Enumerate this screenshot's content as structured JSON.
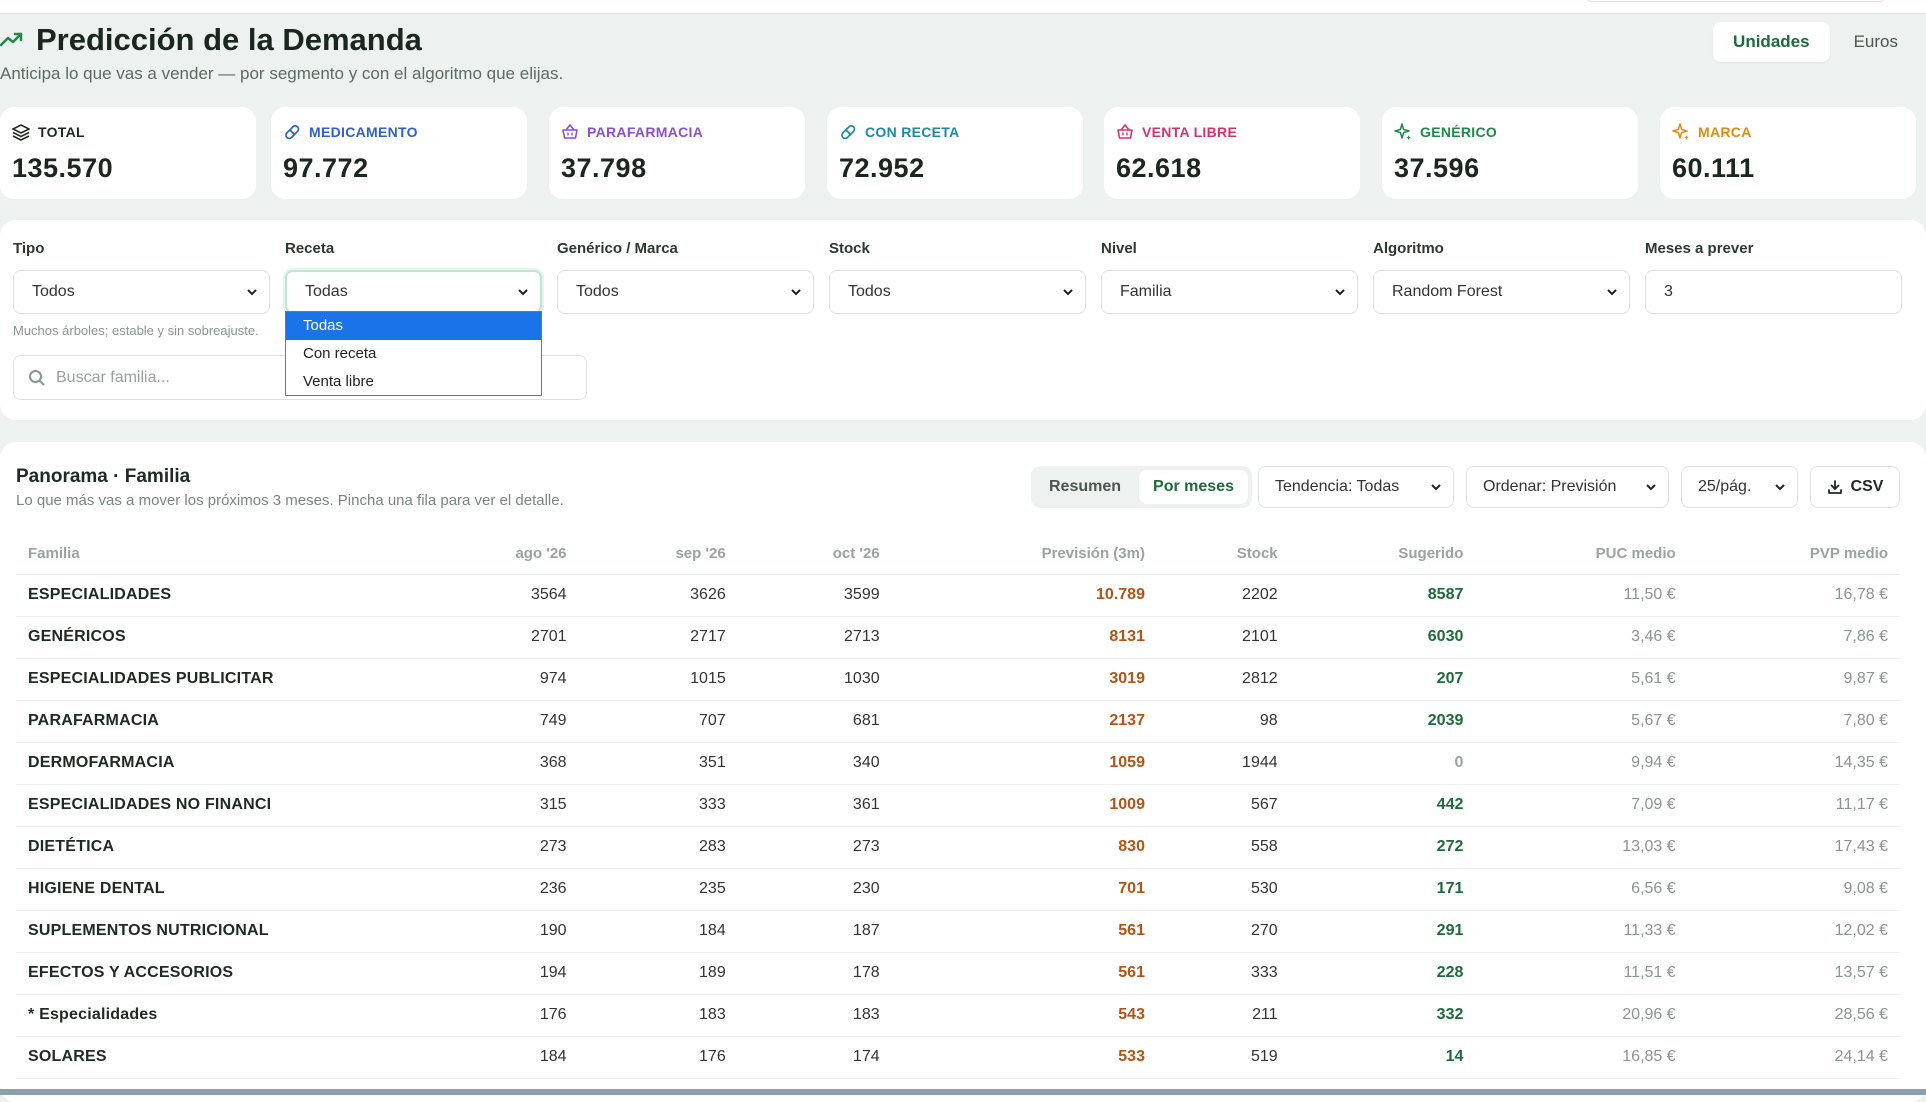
{
  "header": {
    "title": "Predicción de la Demanda",
    "subtitle": "Anticipa lo que vas a vender — por segmento y con el algoritmo que elijas.",
    "unit_options": [
      "Unidades",
      "Euros"
    ],
    "unit_selected": "Unidades"
  },
  "kpis": [
    {
      "label": "TOTAL",
      "value": "135.570",
      "color": "#1f2a24",
      "icon": "layers-icon"
    },
    {
      "label": "MEDICAMENTO",
      "value": "97.772",
      "color": "#2f5fd0",
      "icon": "pill-icon"
    },
    {
      "label": "PARAFARMACIA",
      "value": "37.798",
      "color": "#8a4fd6",
      "icon": "basket-icon"
    },
    {
      "label": "CON RECETA",
      "value": "72.952",
      "color": "#1b8aa0",
      "icon": "pill-icon"
    },
    {
      "label": "VENTA LIBRE",
      "value": "62.618",
      "color": "#d6336c",
      "icon": "basket-icon"
    },
    {
      "label": "GENÉRICO",
      "value": "37.596",
      "color": "#1d8a4a",
      "icon": "sparkle-icon"
    },
    {
      "label": "MARCA",
      "value": "60.111",
      "color": "#e08a10",
      "icon": "sparkle-icon"
    }
  ],
  "filters": {
    "tipo": {
      "label": "Tipo",
      "value": "Todos"
    },
    "receta": {
      "label": "Receta",
      "value": "Todas",
      "options": [
        "Todas",
        "Con receta",
        "Venta libre"
      ]
    },
    "generico": {
      "label": "Genérico / Marca",
      "value": "Todos"
    },
    "stock": {
      "label": "Stock",
      "value": "Todos"
    },
    "nivel": {
      "label": "Nivel",
      "value": "Familia"
    },
    "algoritmo": {
      "label": "Algoritmo",
      "value": "Random Forest"
    },
    "meses": {
      "label": "Meses a prever",
      "value": "3"
    },
    "hint": "Muchos árboles; estable y sin sobreajuste.",
    "search_placeholder": "Buscar familia..."
  },
  "panel": {
    "title": "Panorama · Familia",
    "subtitle": "Lo que más vas a mover los próximos 3 meses. Pincha una fila para ver el detalle.",
    "view_options": [
      "Resumen",
      "Por meses"
    ],
    "view_selected": "Por meses",
    "trend": "Tendencia: Todas",
    "sort": "Ordenar: Previsión",
    "page_size": "25/pág.",
    "csv": "CSV"
  },
  "table": {
    "columns": [
      "Familia",
      "ago '26",
      "sep '26",
      "oct '26",
      "Previsión (3m)",
      "Stock",
      "Sugerido",
      "PUC medio",
      "PVP medio"
    ],
    "rows": [
      [
        "ESPECIALIDADES",
        "3564",
        "3626",
        "3599",
        "10.789",
        "2202",
        "8587",
        "11,50 €",
        "16,78 €"
      ],
      [
        "GENÉRICOS",
        "2701",
        "2717",
        "2713",
        "8131",
        "2101",
        "6030",
        "3,46 €",
        "7,86 €"
      ],
      [
        "ESPECIALIDADES PUBLICITAR",
        "974",
        "1015",
        "1030",
        "3019",
        "2812",
        "207",
        "5,61 €",
        "9,87 €"
      ],
      [
        "PARAFARMACIA",
        "749",
        "707",
        "681",
        "2137",
        "98",
        "2039",
        "5,67 €",
        "7,80 €"
      ],
      [
        "DERMOFARMACIA",
        "368",
        "351",
        "340",
        "1059",
        "1944",
        "0",
        "9,94 €",
        "14,35 €"
      ],
      [
        "ESPECIALIDADES NO FINANCI",
        "315",
        "333",
        "361",
        "1009",
        "567",
        "442",
        "7,09 €",
        "11,17 €"
      ],
      [
        "DIETÉTICA",
        "273",
        "283",
        "273",
        "830",
        "558",
        "272",
        "13,03 €",
        "17,43 €"
      ],
      [
        "HIGIENE DENTAL",
        "236",
        "235",
        "230",
        "701",
        "530",
        "171",
        "6,56 €",
        "9,08 €"
      ],
      [
        "SUPLEMENTOS NUTRICIONAL",
        "190",
        "184",
        "187",
        "561",
        "270",
        "291",
        "11,33 €",
        "12,02 €"
      ],
      [
        "EFECTOS Y ACCESORIOS",
        "194",
        "189",
        "178",
        "561",
        "333",
        "228",
        "11,51 €",
        "13,57 €"
      ],
      [
        "* Especialidades",
        "176",
        "183",
        "183",
        "543",
        "211",
        "332",
        "20,96 €",
        "28,56 €"
      ],
      [
        "SOLARES",
        "184",
        "176",
        "174",
        "533",
        "519",
        "14",
        "16,85 €",
        "24,14 €"
      ]
    ]
  }
}
